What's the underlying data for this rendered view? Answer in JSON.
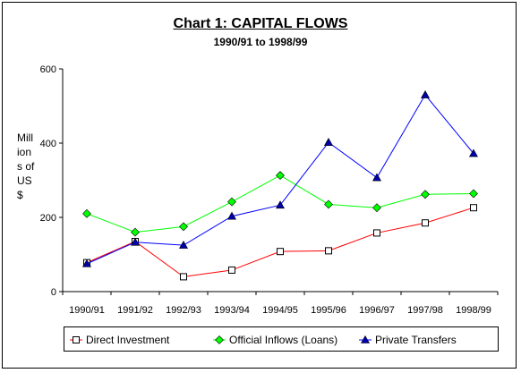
{
  "chart_data": {
    "type": "line",
    "title": "Chart 1: CAPITAL FLOWS",
    "subtitle": "1990/91 to 1998/99",
    "ylabel": "Mill\nion\ns of\nUS\n$",
    "xlabel": "",
    "categories": [
      "1990/91",
      "1991/92",
      "1992/93",
      "1993/94",
      "1994/95",
      "1995/96",
      "1996/97",
      "1997/98",
      "1998/99"
    ],
    "ylim": [
      0,
      600
    ],
    "yticks": [
      0,
      200,
      400,
      600
    ],
    "grid": false,
    "legend_position": "bottom",
    "series": [
      {
        "name": "Direct Investment",
        "color": "#ff0000",
        "marker": "open-square",
        "values": [
          78,
          135,
          40,
          58,
          108,
          110,
          158,
          185,
          226
        ]
      },
      {
        "name": "Official Inflows (Loans)",
        "color": "#00ff00",
        "marker": "diamond",
        "values": [
          210,
          160,
          175,
          242,
          313,
          235,
          226,
          262,
          264
        ]
      },
      {
        "name": "Private Transfers",
        "color": "#0000ff",
        "marker": "triangle",
        "values": [
          75,
          133,
          125,
          203,
          233,
          402,
          307,
          530,
          372
        ]
      }
    ]
  }
}
